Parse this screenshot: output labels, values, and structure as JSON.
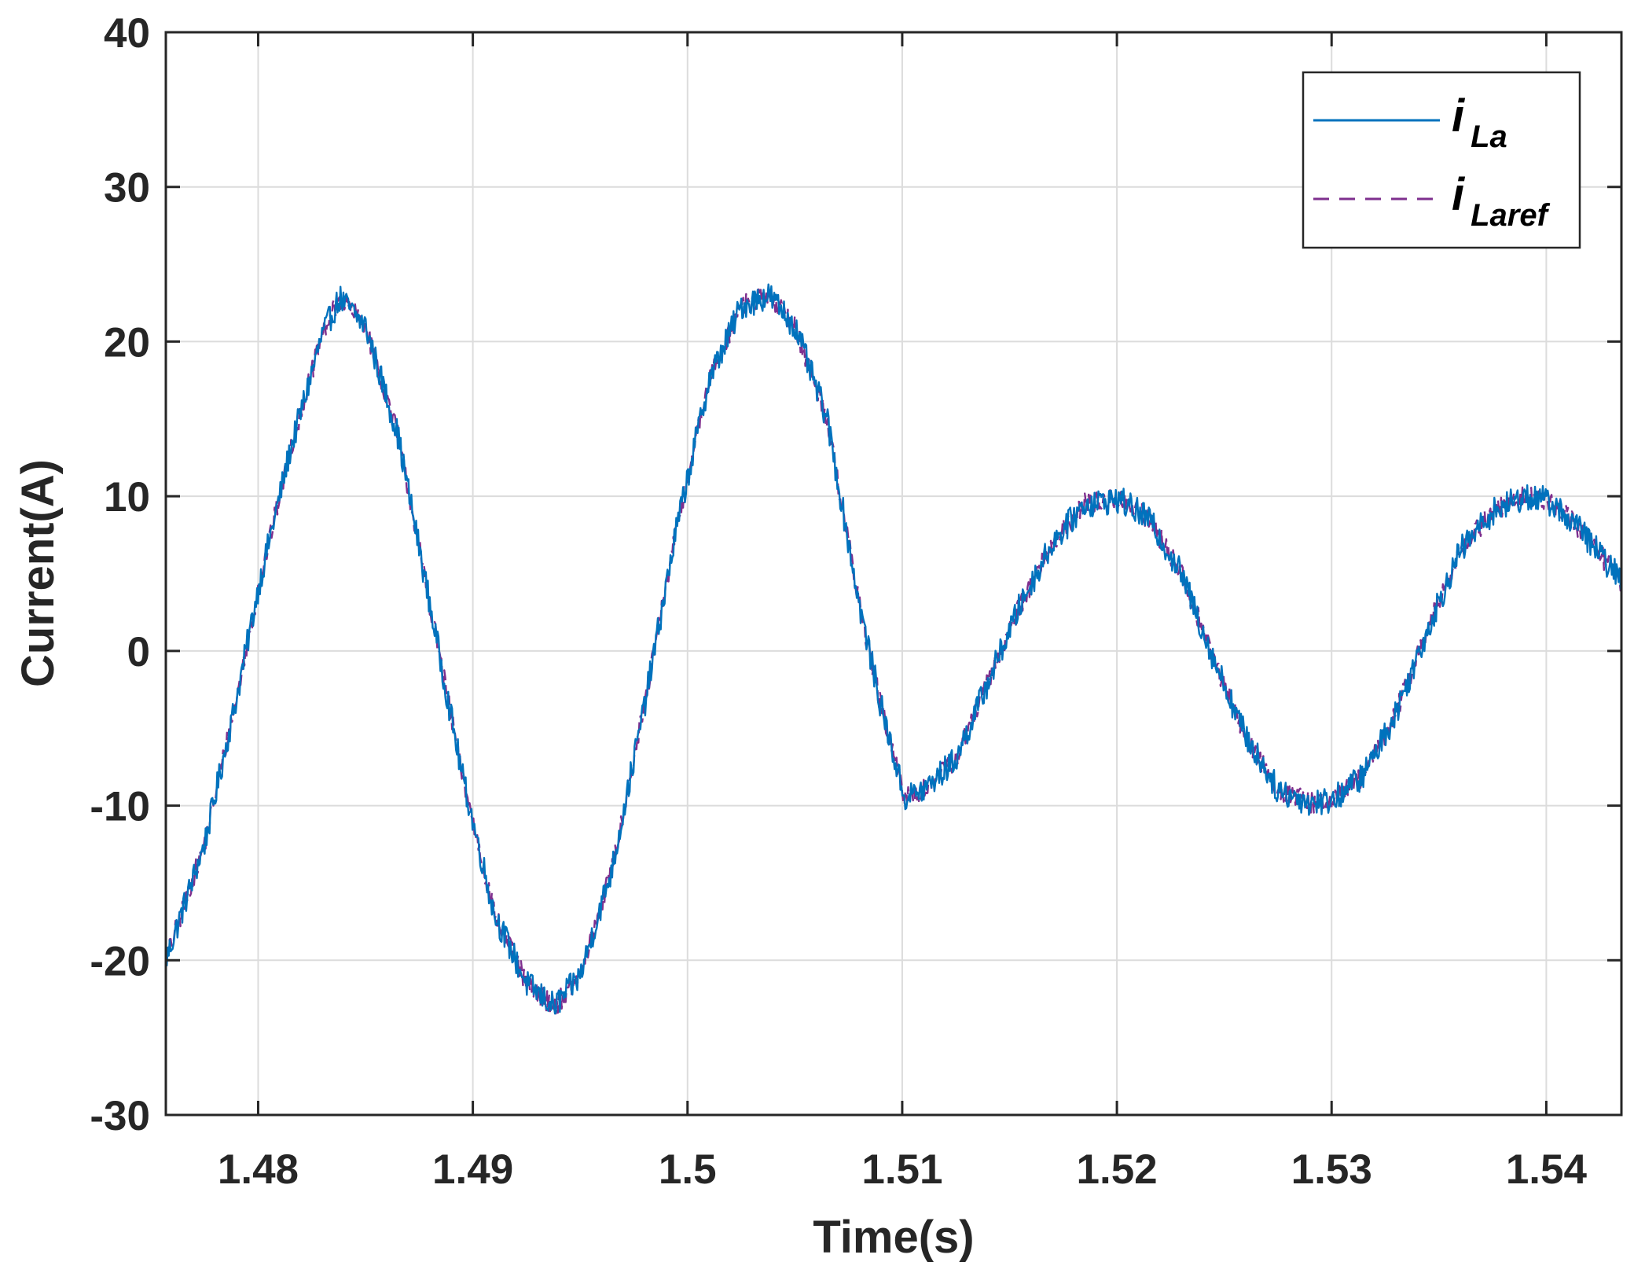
{
  "chart_data": {
    "type": "line",
    "xlabel": "Time(s)",
    "ylabel": "Current(A)",
    "xlim": [
      1.4757,
      1.5435
    ],
    "ylim": [
      -30,
      40
    ],
    "x_ticks": [
      1.48,
      1.49,
      1.5,
      1.51,
      1.52,
      1.53,
      1.54
    ],
    "x_tick_labels": [
      "1.48",
      "1.49",
      "1.5",
      "1.51",
      "1.52",
      "1.53",
      "1.54"
    ],
    "y_ticks": [
      -30,
      -20,
      -10,
      0,
      10,
      20,
      30,
      40
    ],
    "y_tick_labels": [
      "-30",
      "-20",
      "-10",
      "0",
      "10",
      "20",
      "30",
      "40"
    ],
    "grid": true,
    "legend_position": "top-right",
    "x_sampled": [
      1.4757,
      1.4775,
      1.479,
      1.48,
      1.4815,
      1.483,
      1.4838,
      1.485,
      1.4865,
      1.488,
      1.4895,
      1.491,
      1.4925,
      1.4938,
      1.495,
      1.4965,
      1.498,
      1.4995,
      1.501,
      1.5025,
      1.5038,
      1.505,
      1.5065,
      1.508,
      1.509,
      1.5101,
      1.511,
      1.5125,
      1.514,
      1.5155,
      1.517,
      1.5185,
      1.5201,
      1.5215,
      1.523,
      1.5245,
      1.526,
      1.5275,
      1.529,
      1.5301,
      1.5315,
      1.533,
      1.5345,
      1.536,
      1.5375,
      1.539,
      1.5401,
      1.5415,
      1.5435
    ],
    "series": [
      {
        "name": "iLa",
        "legend_main": "i",
        "legend_sub": "La",
        "color": "#0072BD",
        "dash": "solid",
        "noise_amplitude": 0.9,
        "values": [
          -20.0,
          -12.5,
          -3.0,
          4.0,
          13.0,
          20.5,
          22.8,
          21.0,
          14.0,
          3.0,
          -8.0,
          -17.0,
          -21.5,
          -23.0,
          -21.0,
          -14.0,
          -3.5,
          8.0,
          17.5,
          22.3,
          23.0,
          21.0,
          15.0,
          3.0,
          -3.5,
          -9.5,
          -9.0,
          -7.0,
          -2.0,
          3.0,
          7.0,
          9.5,
          9.8,
          8.5,
          5.0,
          -0.5,
          -5.5,
          -9.0,
          -9.8,
          -9.6,
          -8.0,
          -4.0,
          1.5,
          6.5,
          9.0,
          10.0,
          9.7,
          8.0,
          4.5
        ]
      },
      {
        "name": "iLaref",
        "legend_main": "i",
        "legend_sub": "Laref",
        "color": "#7E2F8E",
        "dash": "dashed",
        "noise_amplitude": 0.7,
        "values": [
          -20.0,
          -12.5,
          -3.0,
          4.0,
          13.0,
          20.5,
          22.8,
          21.0,
          14.0,
          3.0,
          -8.0,
          -17.0,
          -21.5,
          -23.0,
          -21.0,
          -14.0,
          -3.5,
          8.0,
          17.5,
          22.3,
          23.0,
          21.0,
          15.0,
          3.0,
          -3.5,
          -9.5,
          -9.0,
          -7.0,
          -2.0,
          3.0,
          7.0,
          9.5,
          9.8,
          8.5,
          5.0,
          -0.5,
          -5.5,
          -9.0,
          -9.8,
          -9.6,
          -8.0,
          -4.0,
          1.5,
          6.5,
          9.0,
          10.0,
          9.7,
          8.0,
          4.5
        ]
      }
    ]
  }
}
